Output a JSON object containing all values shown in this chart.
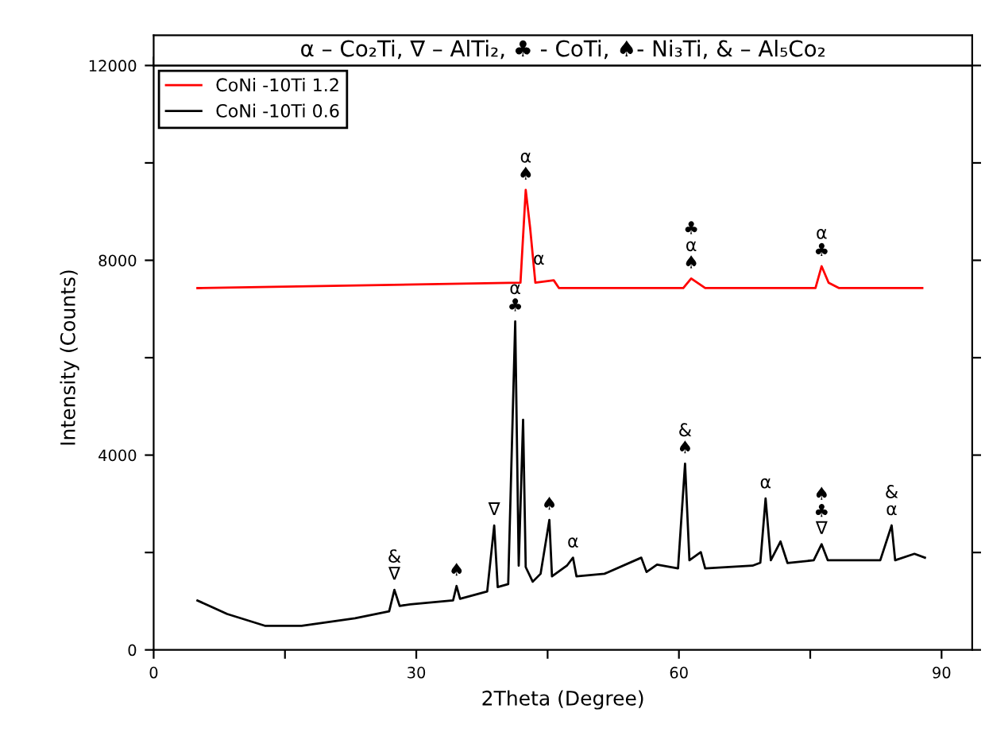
{
  "chart_data": {
    "type": "line",
    "title": "α – Co₂Ti, ∇ – AlTi₂, ♣ - CoTi, ♠- Ni₃Ti, & – Al₅Co₂",
    "xlabel": "2Theta (Degree)",
    "ylabel": "Intensity (Counts)",
    "xlim": [
      0,
      93.5
    ],
    "ylim": [
      0,
      12000
    ],
    "xticks": [
      0,
      {
        "value": 15,
        "label": null
      },
      30,
      {
        "value": 45,
        "label": null
      },
      60,
      {
        "value": 75,
        "label": null
      },
      90
    ],
    "yticks": [
      0,
      {
        "value": 2000,
        "label": null
      },
      4000,
      {
        "value": 6000,
        "label": null
      },
      8000,
      {
        "value": 10000,
        "label": null
      },
      12000
    ],
    "grid": false,
    "legend": "top left",
    "marker": "none",
    "line_style": "solid",
    "series": [
      {
        "name": "CoNi -10Ti 1.2",
        "color": "#ff0000",
        "x": [
          5,
          41.9,
          42.5,
          43.0,
          43.6,
          45.7,
          46.3,
          60.5,
          61.4,
          63.0,
          75.6,
          76.3,
          77.1,
          78.3,
          87.8
        ],
        "values": [
          7429,
          7540,
          9445,
          8672,
          7540,
          7590,
          7429,
          7429,
          7627,
          7429,
          7429,
          7878,
          7540,
          7429,
          7429
        ]
      },
      {
        "name": "CoNi -10Ti 0.6",
        "color": "#000000",
        "x": [
          5,
          8.4,
          12.7,
          16.9,
          23,
          26.9,
          27.5,
          28.1,
          29.3,
          34.2,
          34.6,
          35,
          38.1,
          38.9,
          39.3,
          40.5,
          41.3,
          41.7,
          42.2,
          42.5,
          43.3,
          44.2,
          45.2,
          45.5,
          47.2,
          47.9,
          48.3,
          51.5,
          55.7,
          56.3,
          57.5,
          59.9,
          60.7,
          61.2,
          62.5,
          63,
          68.4,
          69.3,
          69.9,
          70.5,
          71.6,
          72.4,
          75.4,
          76.3,
          77,
          83,
          84.3,
          84.7,
          86.9,
          88.1
        ],
        "values": [
          1015,
          737,
          496,
          496,
          651,
          793,
          1233,
          903,
          936,
          1015,
          1312,
          1050,
          1200,
          2556,
          1289,
          1350,
          6744,
          1729,
          4727,
          1700,
          1400,
          1563,
          2668,
          1510,
          1729,
          1894,
          1510,
          1563,
          1894,
          1600,
          1752,
          1675,
          3825,
          1841,
          2007,
          1675,
          1729,
          1790,
          3108,
          1841,
          2226,
          1785,
          1841,
          2171,
          1841,
          1841,
          2556,
          1841,
          1973,
          1894
        ]
      }
    ],
    "annotations": [
      {
        "text": "α\n♠",
        "x": 42.5,
        "y": 9445
      },
      {
        "text": "α",
        "x": 44.0,
        "y": 7700
      },
      {
        "text": "♣\nα\n♠",
        "x": 61.4,
        "y": 7627
      },
      {
        "text": "α\n♣",
        "x": 76.3,
        "y": 7878
      },
      {
        "text": "α\n♣",
        "x": 41.3,
        "y": 6744
      },
      {
        "text": "&\n∇",
        "x": 27.5,
        "y": 1233
      },
      {
        "text": "♠",
        "x": 34.6,
        "y": 1312
      },
      {
        "text": "∇",
        "x": 38.9,
        "y": 2556
      },
      {
        "text": "♠",
        "x": 45.2,
        "y": 2668
      },
      {
        "text": "α",
        "x": 47.9,
        "y": 1894
      },
      {
        "text": "&\n♠",
        "x": 60.7,
        "y": 3825
      },
      {
        "text": "α",
        "x": 69.9,
        "y": 3108
      },
      {
        "text": "♠\n♣\n∇",
        "x": 76.3,
        "y": 2171
      },
      {
        "text": "&\nα",
        "x": 84.3,
        "y": 2556
      }
    ]
  }
}
